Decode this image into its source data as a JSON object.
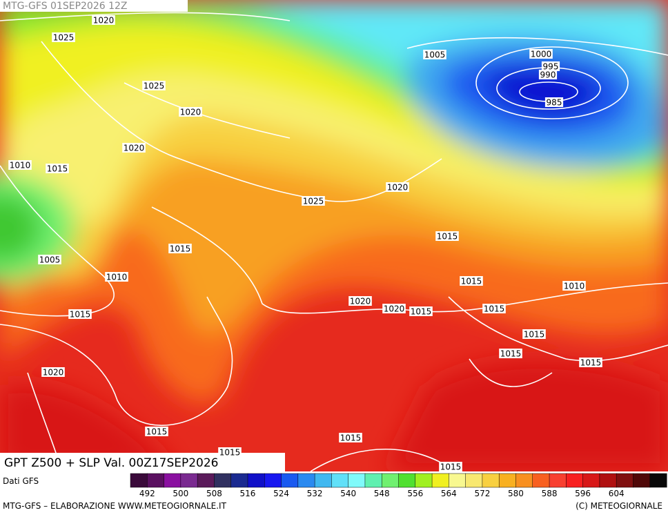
{
  "header": {
    "run": "MTG-GFS 01SEP2026 12Z"
  },
  "map": {
    "title": "GPT Z500 + SLP Val. 00Z17SEP2026",
    "isobar_labels": [
      "1020",
      "1025",
      "1005",
      "1000",
      "995",
      "990",
      "985",
      "1025",
      "1020",
      "1020",
      "1010",
      "1015",
      "1020",
      "1025",
      "1015",
      "1015",
      "1005",
      "1010",
      "1015",
      "1010",
      "1020",
      "1020",
      "1015",
      "1015",
      "1015",
      "1015",
      "1015",
      "1015",
      "1020",
      "1015",
      "1015",
      "1015",
      "1015"
    ]
  },
  "colorbar": {
    "source": "Dati GFS",
    "labels": [
      "492",
      "500",
      "508",
      "516",
      "524",
      "532",
      "540",
      "548",
      "556",
      "564",
      "572",
      "580",
      "588",
      "596",
      "604"
    ],
    "colors": [
      "#3a0a3a",
      "#5a1060",
      "#8a10a0",
      "#7a2a90",
      "#5a1a5a",
      "#303060",
      "#1a2a90",
      "#1010c8",
      "#1818f0",
      "#1a5af0",
      "#2a8af0",
      "#40b8f0",
      "#60e0f8",
      "#80fafa",
      "#60f0b0",
      "#70f070",
      "#50e030",
      "#a0f020",
      "#f0f020",
      "#f8f890",
      "#f8e870",
      "#f8d040",
      "#f8b020",
      "#f89020",
      "#f86020",
      "#f84030",
      "#f82020",
      "#d81818",
      "#b01010",
      "#801010",
      "#500808",
      "#080808"
    ]
  },
  "footer": {
    "left": "MTG-GFS – ELABORAZIONE WWW.METEOGIORNALE.IT",
    "right": "(C) METEOGIORNALE"
  }
}
